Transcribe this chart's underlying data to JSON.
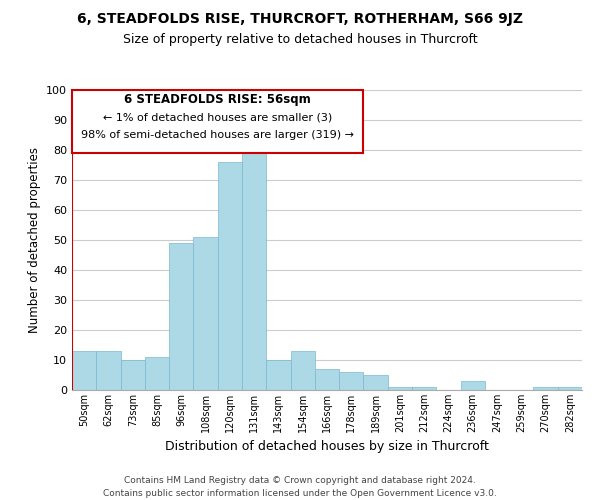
{
  "title": "6, STEADFOLDS RISE, THURCROFT, ROTHERHAM, S66 9JZ",
  "subtitle": "Size of property relative to detached houses in Thurcroft",
  "xlabel": "Distribution of detached houses by size in Thurcroft",
  "ylabel": "Number of detached properties",
  "footer_line1": "Contains HM Land Registry data © Crown copyright and database right 2024.",
  "footer_line2": "Contains public sector information licensed under the Open Government Licence v3.0.",
  "bin_labels": [
    "50sqm",
    "62sqm",
    "73sqm",
    "85sqm",
    "96sqm",
    "108sqm",
    "120sqm",
    "131sqm",
    "143sqm",
    "154sqm",
    "166sqm",
    "178sqm",
    "189sqm",
    "201sqm",
    "212sqm",
    "224sqm",
    "236sqm",
    "247sqm",
    "259sqm",
    "270sqm",
    "282sqm"
  ],
  "bar_heights": [
    13,
    13,
    10,
    11,
    49,
    51,
    76,
    81,
    10,
    13,
    7,
    6,
    5,
    1,
    1,
    0,
    3,
    0,
    0,
    1,
    1
  ],
  "bar_color": "#add8e6",
  "bar_edge_color": "#7ab8d4",
  "highlight_color": "#cc0000",
  "annotation_title": "6 STEADFOLDS RISE: 56sqm",
  "annotation_line2": "← 1% of detached houses are smaller (3)",
  "annotation_line3": "98% of semi-detached houses are larger (319) →",
  "annotation_box_color": "#ffffff",
  "annotation_border_color": "#cc0000",
  "ylim": [
    0,
    100
  ],
  "yticks": [
    0,
    10,
    20,
    30,
    40,
    50,
    60,
    70,
    80,
    90,
    100
  ],
  "background_color": "#ffffff",
  "grid_color": "#cccccc"
}
